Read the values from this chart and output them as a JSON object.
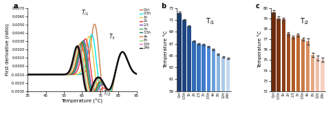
{
  "panel_a": {
    "xlabel": "Temperature (°C)",
    "ylabel": "First derivative (ratio)",
    "xlim": [
      35,
      95
    ],
    "ylim": [
      -0.003,
      0.007
    ],
    "yticks": [
      -0.003,
      -0.002,
      -0.001,
      0.0,
      0.001,
      0.002,
      0.003,
      0.004,
      0.005,
      0.006,
      0.007
    ],
    "ytick_labels": [
      "-0.0030",
      "-0.0020",
      "-0.0010",
      "0.0000",
      "0.0010",
      "0.0020",
      "0.0030",
      "0.0040",
      "0.0050",
      "0.0060",
      "0.0070"
    ],
    "xticks": [
      35,
      45,
      55,
      65,
      75,
      85,
      95
    ],
    "legend": [
      "Ctrl",
      "0.5h",
      "1h",
      "2h",
      "2.5",
      "3h",
      "3.5h",
      "4h",
      "8h",
      "12h",
      "24h"
    ],
    "line_colors": [
      "#c87941",
      "#00e5e5",
      "#e8c840",
      "#e83030",
      "#8040c0",
      "#30b050",
      "#207070",
      "#e87820",
      "#90d870",
      "#f070b0",
      "#101010"
    ],
    "label_a": "a",
    "ti1_peaks": [
      72.0,
      70.5,
      69.0,
      67.0,
      66.0,
      65.5,
      65.0,
      64.5,
      63.5,
      63.0,
      62.5
    ],
    "peak_heights": [
      0.0063,
      0.005,
      0.0048,
      0.0045,
      0.0043,
      0.0042,
      0.0041,
      0.004,
      0.0038,
      0.0037,
      0.0036
    ],
    "t3_peaks": [
      87.0,
      87.0,
      87.0,
      87.0,
      87.0,
      87.0,
      87.0,
      87.0,
      87.0,
      87.0,
      87.0
    ],
    "ti2_troughs": [
      80.0,
      80.0,
      80.0,
      80.0,
      80.0,
      80.0,
      80.0,
      80.0,
      80.0,
      80.0,
      80.0
    ],
    "linewidths": [
      1.0,
      1.0,
      1.0,
      1.0,
      1.0,
      1.0,
      1.0,
      1.0,
      1.0,
      1.0,
      1.8
    ]
  },
  "panel_b": {
    "categories": [
      "Ctrl",
      "0.5h",
      "1h",
      "2h",
      "2.5",
      "3h",
      "3.5h",
      "4h",
      "8h",
      "12h",
      "24h"
    ],
    "values": [
      72.2,
      71.0,
      70.0,
      67.4,
      67.0,
      66.8,
      66.5,
      66.0,
      65.2,
      64.8,
      64.5
    ],
    "errors": [
      0.15,
      0.12,
      0.12,
      0.12,
      0.12,
      0.12,
      0.12,
      0.12,
      0.12,
      0.12,
      0.12
    ],
    "colors": [
      "#1a3a6b",
      "#1e4480",
      "#224d8f",
      "#2e6ab5",
      "#3573c0",
      "#3d7acc",
      "#4a88d8",
      "#6a9fdd",
      "#8ab5e0",
      "#aacae8",
      "#c2d8f0"
    ],
    "ylabel": "Temperature °C",
    "ylim": [
      59,
      73
    ],
    "yticks": [
      59,
      61,
      63,
      65,
      67,
      69,
      71,
      73
    ],
    "title": "T$_{i1}$",
    "label": "b"
  },
  "panel_c": {
    "categories": [
      "Ctrl",
      "0.5h",
      "1h",
      "2h",
      "2.5",
      "3h",
      "3.5h",
      "4h",
      "8h",
      "12h",
      "24h"
    ],
    "values": [
      79.6,
      79.0,
      78.9,
      77.5,
      77.2,
      77.4,
      77.0,
      76.8,
      75.5,
      75.2,
      75.0
    ],
    "errors": [
      0.2,
      0.15,
      0.15,
      0.15,
      0.15,
      0.15,
      0.15,
      0.3,
      0.2,
      0.25,
      0.2
    ],
    "colors": [
      "#6b2a0a",
      "#7a3310",
      "#8a3d16",
      "#a04d20",
      "#b05a25",
      "#be6830",
      "#cc7a45",
      "#d98f60",
      "#e4a880",
      "#eebeaa",
      "#f5d0c0"
    ],
    "ylabel": "Temperature °C",
    "ylim": [
      72,
      80
    ],
    "yticks": [
      72,
      73,
      74,
      75,
      76,
      77,
      78,
      79,
      80
    ],
    "title": "T$_{i2}$",
    "label": "c"
  }
}
